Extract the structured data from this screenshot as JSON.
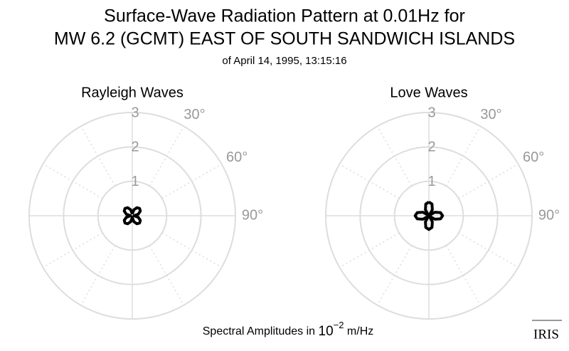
{
  "title": [
    "Surface-Wave Radiation Pattern at 0.01Hz for",
    "MW 6.2 (GCMT) EAST OF SOUTH SANDWICH ISLANDS"
  ],
  "subtitle": "of April 14, 1995, 13:15:16",
  "footer": {
    "prefix": "Spectral Amplitudes in ",
    "base": "10",
    "exponent": "−2",
    "suffix": " m/Hz"
  },
  "logo": "IRIS",
  "chart_data": [
    {
      "type": "polar",
      "title": "Rayleigh Waves",
      "rlim": [
        0,
        3
      ],
      "rticks": [
        1,
        2,
        3
      ],
      "thetaticks": [
        {
          "value": 30,
          "label": "30°"
        },
        {
          "value": 60,
          "label": "60°"
        },
        {
          "value": 90,
          "label": "90°"
        }
      ],
      "series": [
        {
          "color": "#000000",
          "theta": [
            0,
            15,
            30,
            45,
            60,
            75,
            90,
            105,
            120,
            135,
            150,
            165,
            180,
            195,
            210,
            225,
            240,
            255,
            270,
            285,
            300,
            315,
            330,
            345,
            360
          ],
          "values": [
            0.05,
            0.18,
            0.27,
            0.3,
            0.27,
            0.18,
            0.05,
            0.18,
            0.27,
            0.3,
            0.27,
            0.18,
            0.05,
            0.18,
            0.27,
            0.3,
            0.27,
            0.18,
            0.05,
            0.18,
            0.27,
            0.3,
            0.27,
            0.18,
            0.05
          ]
        }
      ]
    },
    {
      "type": "polar",
      "title": "Love Waves",
      "rlim": [
        0,
        3
      ],
      "rticks": [
        1,
        2,
        3
      ],
      "thetaticks": [
        {
          "value": 30,
          "label": "30°"
        },
        {
          "value": 60,
          "label": "60°"
        },
        {
          "value": 90,
          "label": "90°"
        }
      ],
      "series": [
        {
          "color": "#000000",
          "theta": [
            0,
            15,
            30,
            45,
            60,
            75,
            90,
            105,
            120,
            135,
            150,
            165,
            180,
            195,
            210,
            225,
            240,
            255,
            270,
            285,
            300,
            315,
            330,
            345,
            360
          ],
          "values": [
            0.4,
            0.35,
            0.2,
            0.02,
            0.2,
            0.35,
            0.4,
            0.35,
            0.2,
            0.02,
            0.2,
            0.35,
            0.4,
            0.35,
            0.2,
            0.02,
            0.2,
            0.35,
            0.4,
            0.35,
            0.2,
            0.02,
            0.2,
            0.35,
            0.4
          ]
        }
      ]
    }
  ]
}
